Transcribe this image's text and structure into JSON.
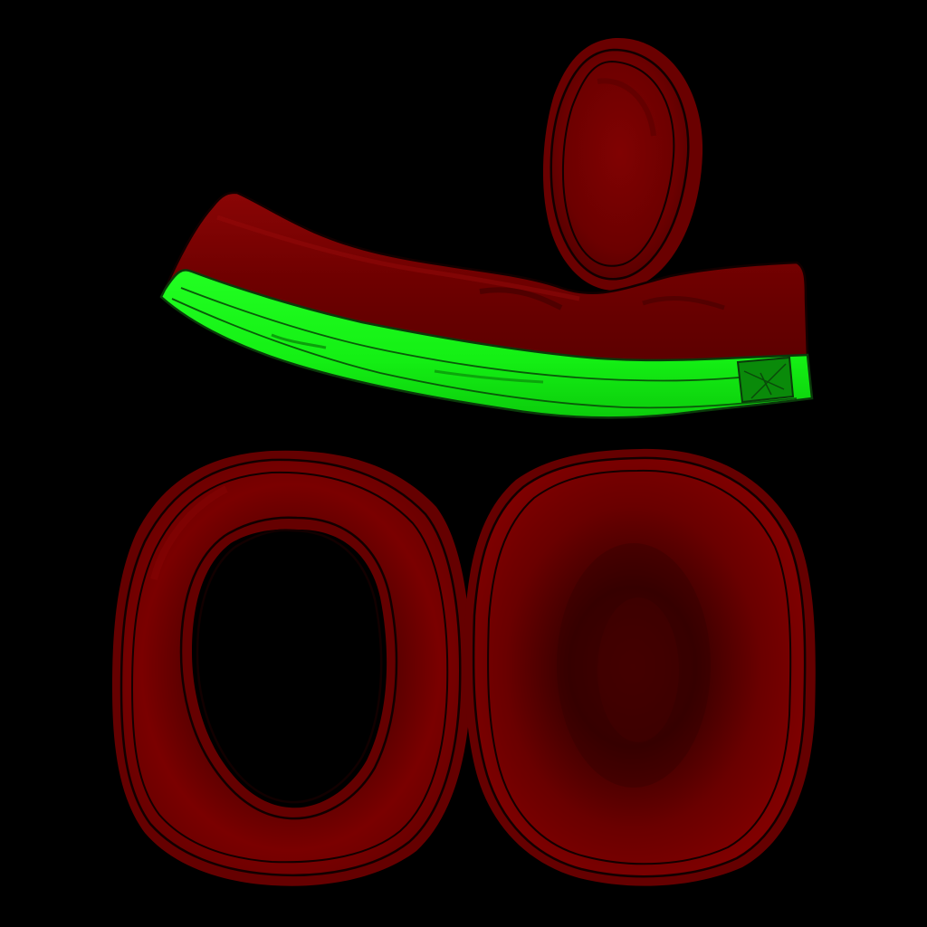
{
  "background_color": "#000000",
  "parts": [
    {
      "name": "headband-strap",
      "fill": "#7a0000",
      "edge_fill": "#19ff19"
    },
    {
      "name": "teardrop-pad",
      "fill": "#7a0000"
    },
    {
      "name": "ring-ear-cushion",
      "fill": "#7a0000"
    },
    {
      "name": "solid-ear-cushion",
      "fill": "#7a0000"
    }
  ],
  "colors": {
    "dark_red": "#4a0000",
    "mid_red": "#7a0000",
    "highlight_red": "#8c0606",
    "outline": "#1a0000",
    "bright_green": "#19ff19",
    "dark_green": "#0aa00a"
  }
}
